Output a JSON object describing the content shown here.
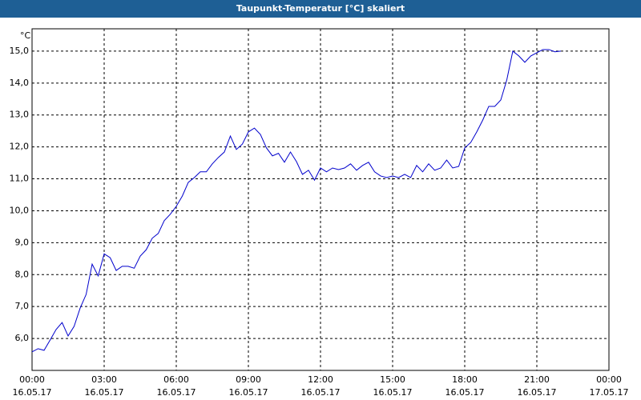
{
  "chart_data": {
    "type": "line",
    "title": "Taupunkt-Temperatur [°C] skaliert",
    "y_label": "°C",
    "color": "#0000cc",
    "x": [
      0,
      0.25,
      0.5,
      0.75,
      1,
      1.25,
      1.5,
      1.75,
      2,
      2.25,
      2.5,
      2.75,
      3,
      3.25,
      3.5,
      3.75,
      4,
      4.25,
      4.5,
      4.75,
      5,
      5.25,
      5.5,
      5.75,
      6,
      6.25,
      6.5,
      6.75,
      7,
      7.25,
      7.5,
      7.75,
      8,
      8.25,
      8.5,
      8.75,
      9,
      9.25,
      9.5,
      9.75,
      10,
      10.25,
      10.5,
      10.75,
      11,
      11.25,
      11.5,
      11.75,
      12,
      12.25,
      12.5,
      12.75,
      13,
      13.25,
      13.5,
      13.75,
      14,
      14.25,
      14.5,
      14.75,
      15,
      15.25,
      15.5,
      15.75,
      16,
      16.25,
      16.5,
      16.75,
      17,
      17.25,
      17.5,
      17.75,
      18,
      18.25,
      18.5,
      18.75,
      19,
      19.25,
      19.5,
      19.75,
      20,
      20.25,
      20.5,
      20.75,
      21,
      21.25,
      21.5,
      21.75,
      22
    ],
    "values": [
      5.58,
      5.68,
      5.63,
      5.95,
      6.28,
      6.5,
      6.08,
      6.38,
      6.95,
      7.38,
      8.33,
      7.96,
      8.65,
      8.53,
      8.13,
      8.26,
      8.26,
      8.2,
      8.58,
      8.78,
      9.14,
      9.29,
      9.69,
      9.89,
      10.14,
      10.46,
      10.89,
      11.04,
      11.22,
      11.22,
      11.47,
      11.67,
      11.84,
      12.34,
      11.92,
      12.09,
      12.47,
      12.59,
      12.39,
      11.97,
      11.72,
      11.8,
      11.52,
      11.84,
      11.54,
      11.14,
      11.27,
      10.96,
      11.34,
      11.22,
      11.34,
      11.29,
      11.34,
      11.47,
      11.27,
      11.42,
      11.52,
      11.22,
      11.09,
      11.04,
      11.09,
      11.04,
      11.14,
      11.04,
      11.42,
      11.22,
      11.47,
      11.27,
      11.34,
      11.59,
      11.34,
      11.39,
      11.97,
      12.14,
      12.47,
      12.84,
      13.27,
      13.27,
      13.47,
      14.1,
      15.0,
      14.85,
      14.65,
      14.85,
      14.95,
      15.05,
      15.05,
      14.98,
      15.0
    ],
    "xlim": [
      0,
      24
    ],
    "xticks": [
      {
        "value": 0,
        "label": "00:00"
      },
      {
        "value": 3,
        "label": "03:00"
      },
      {
        "value": 6,
        "label": "06:00"
      },
      {
        "value": 9,
        "label": "09:00"
      },
      {
        "value": 12,
        "label": "12:00"
      },
      {
        "value": 15,
        "label": "15:00"
      },
      {
        "value": 18,
        "label": "18:00"
      },
      {
        "value": 21,
        "label": "21:00"
      },
      {
        "value": 24,
        "label": "00:00"
      }
    ],
    "xtick_dates": [
      "16.05.17",
      "16.05.17",
      "16.05.17",
      "16.05.17",
      "16.05.17",
      "16.05.17",
      "16.05.17",
      "16.05.17",
      "17.05.17"
    ],
    "ylim": [
      5.0,
      15.7
    ],
    "yticks": [
      {
        "value": 6,
        "label": "6,0"
      },
      {
        "value": 7,
        "label": "7,0"
      },
      {
        "value": 8,
        "label": "8,0"
      },
      {
        "value": 9,
        "label": "9,0"
      },
      {
        "value": 10,
        "label": "10,0"
      },
      {
        "value": 11,
        "label": "11,0"
      },
      {
        "value": 12,
        "label": "12,0"
      },
      {
        "value": 13,
        "label": "13,0"
      },
      {
        "value": 14,
        "label": "14,0"
      },
      {
        "value": 15,
        "label": "15,0"
      }
    ],
    "grid": true
  }
}
